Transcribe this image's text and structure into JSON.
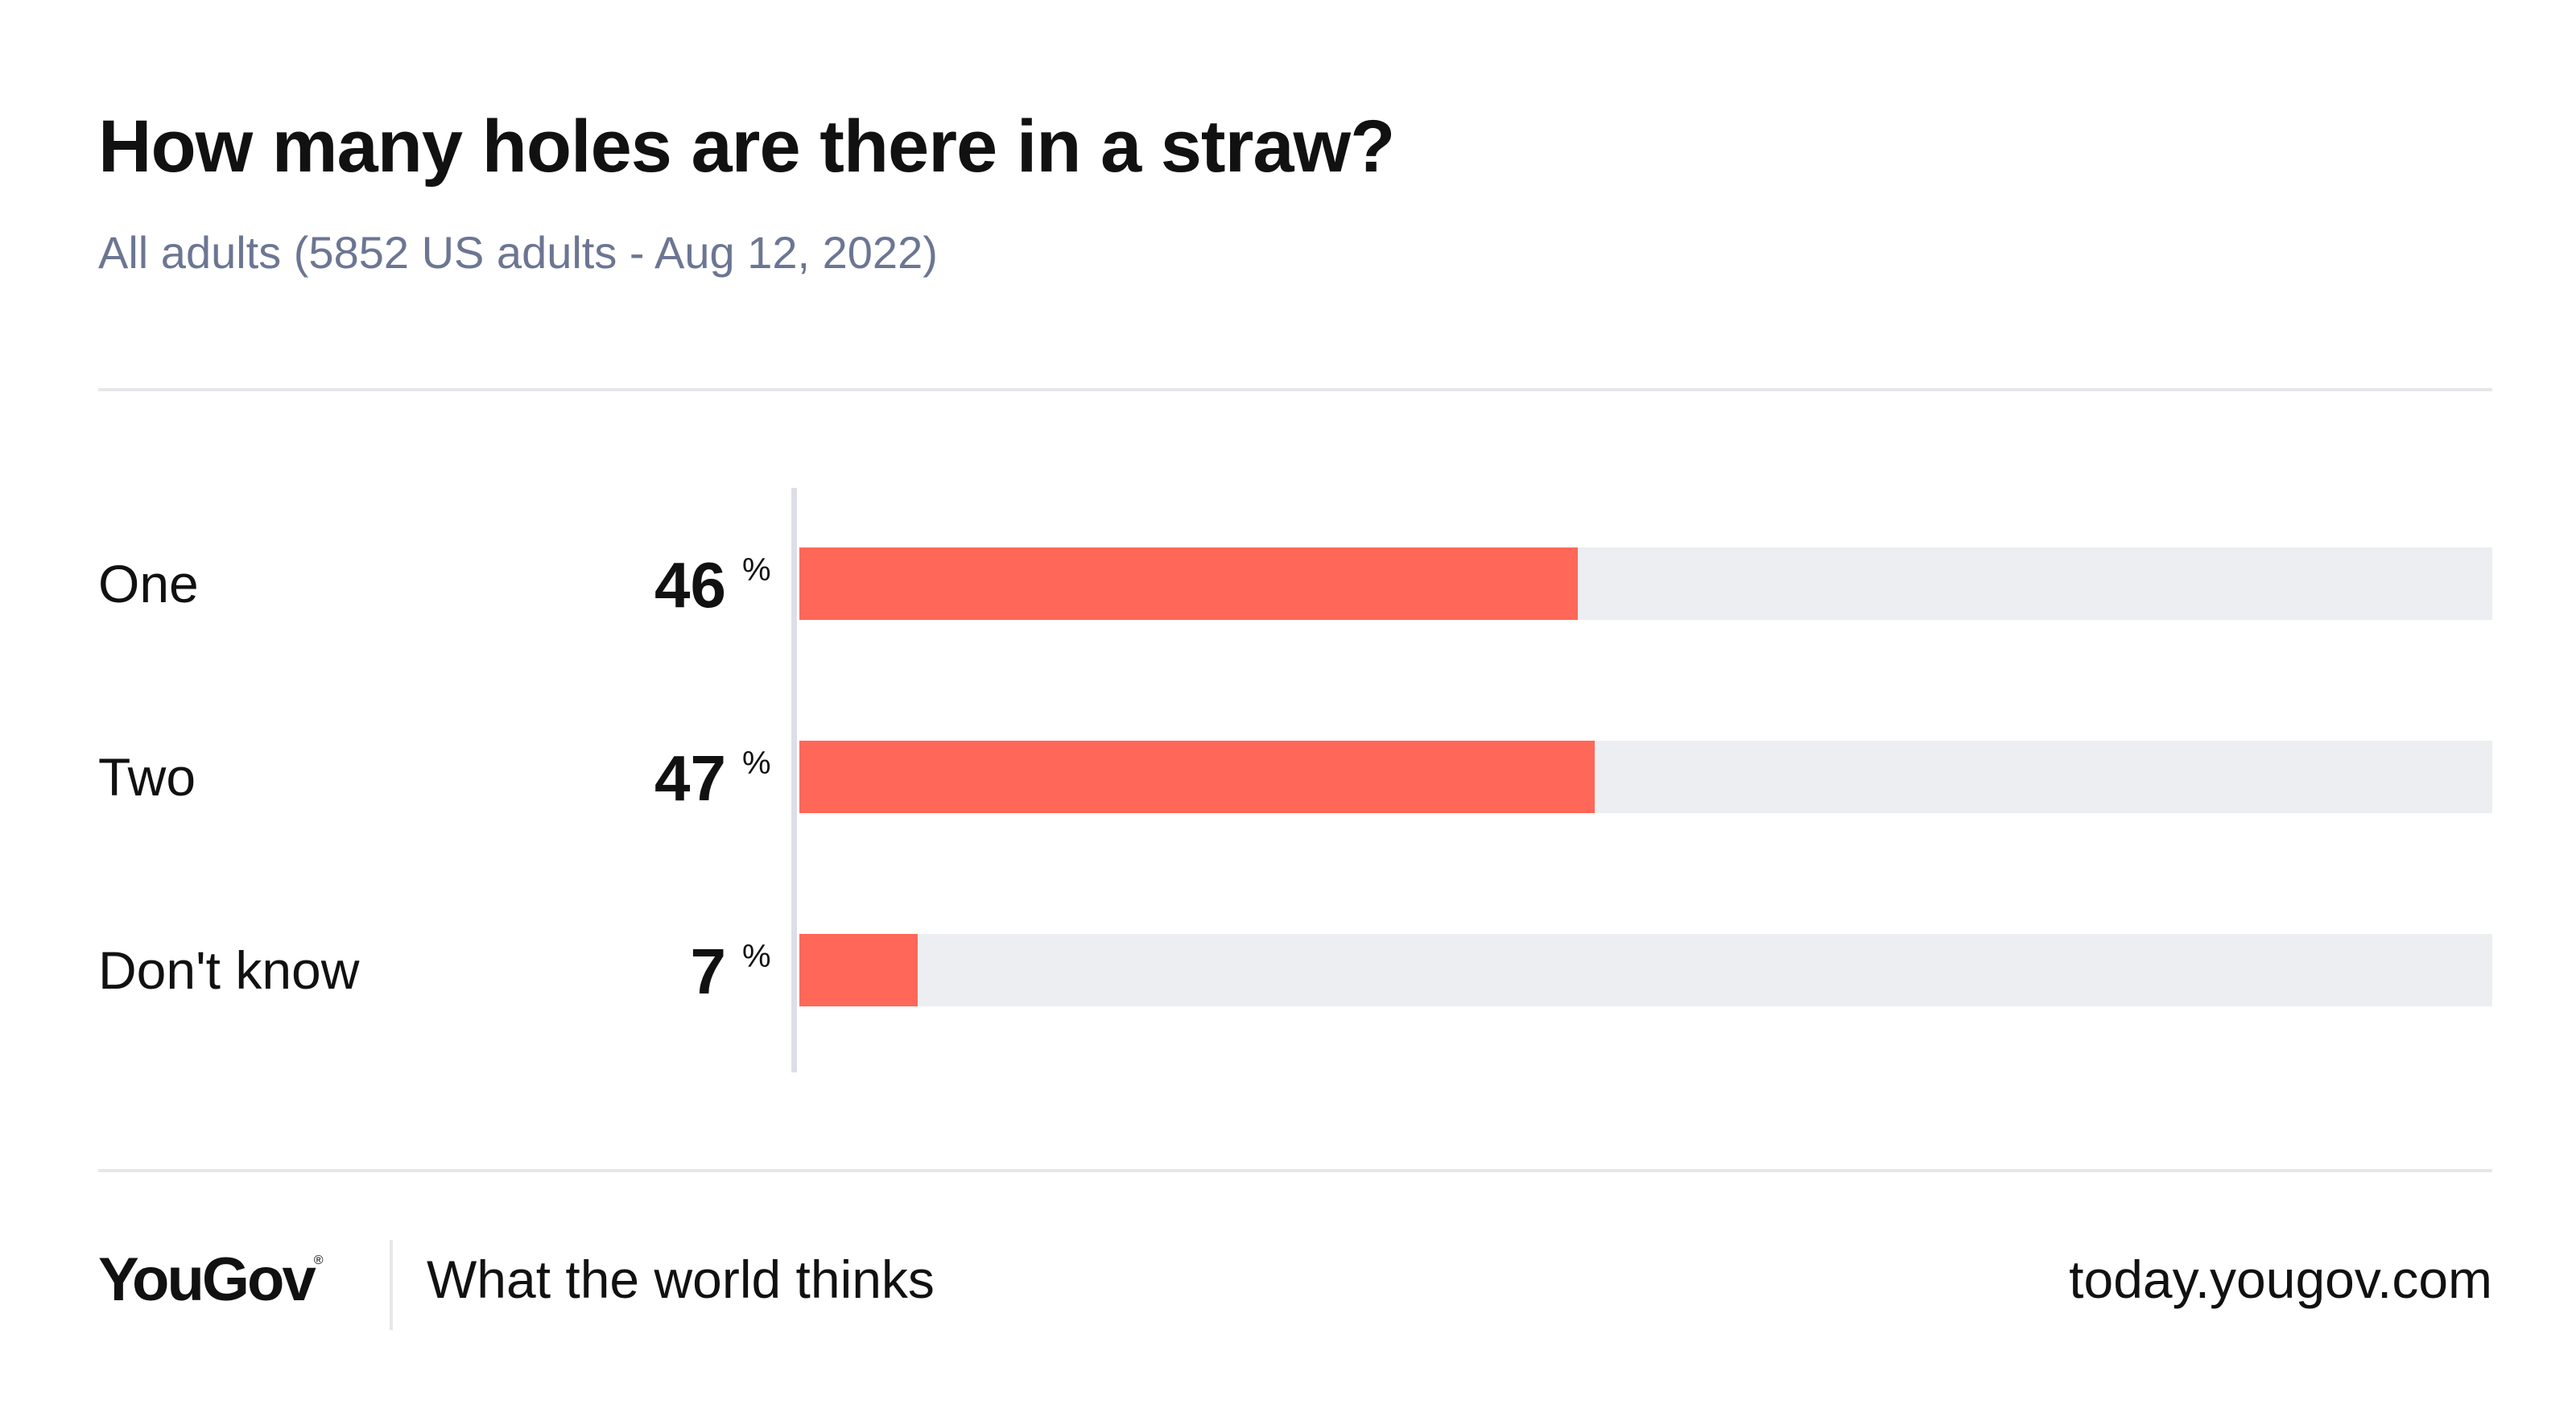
{
  "header": {
    "title": "How many holes are there in a straw?",
    "subtitle": "All adults (5852 US adults - Aug 12, 2022)"
  },
  "chart_data": {
    "type": "bar",
    "orientation": "horizontal",
    "categories": [
      "One",
      "Two",
      "Don't know"
    ],
    "values": [
      46,
      47,
      7
    ],
    "value_suffix": "%",
    "xlim": [
      0,
      100
    ],
    "grid": false,
    "legend": "none"
  },
  "footer": {
    "brand": "YouGov",
    "brand_mark": "®",
    "tagline": "What the world thinks",
    "url": "today.yougov.com"
  },
  "colors": {
    "bar": "#ff6759",
    "track": "#edeef2",
    "subtitle": "#6c7693",
    "text": "#111111"
  }
}
